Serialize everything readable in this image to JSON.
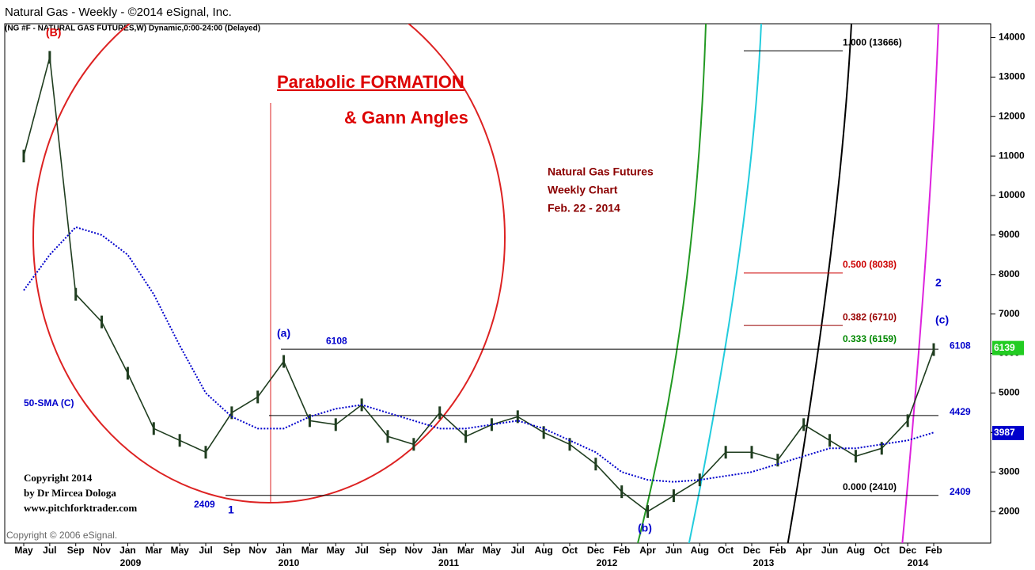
{
  "chart_data": {
    "type": "line",
    "title": "Natural Gas - Weekly - ©2014 eSignal, Inc.",
    "subtitle": "(NG #F - NATURAL GAS FUTURES,W) Dynamic,0:00-24:00 (Delayed)",
    "categories": [
      "May",
      "Jul",
      "Sep",
      "Nov",
      "Jan",
      "Mar",
      "May",
      "Jul",
      "Sep",
      "Nov",
      "Jan",
      "Mar",
      "May",
      "Jul",
      "Sep",
      "Nov",
      "Jan",
      "Mar",
      "May",
      "Jul",
      "Aug",
      "Oct",
      "Dec",
      "Feb",
      "Apr",
      "Jun",
      "Aug",
      "Oct",
      "Dec",
      "Feb",
      "Apr",
      "Jun",
      "Aug",
      "Oct",
      "Dec",
      "Feb"
    ],
    "years": [
      "2009",
      "2010",
      "2011",
      "2012",
      "2013",
      "2014"
    ],
    "series": [
      {
        "color": "#1f3d1f",
        "values": [
          11000,
          13500,
          7500,
          6800,
          5500,
          4100,
          3800,
          3500,
          4500,
          4900,
          5800,
          4300,
          4200,
          4700,
          3900,
          3700,
          4500,
          3900,
          4200,
          4400,
          4000,
          3700,
          3200,
          2500,
          2000,
          2400,
          2800,
          3500,
          3500,
          3300,
          4200,
          3800,
          3400,
          3600,
          4300,
          6100
        ]
      },
      {
        "name": "50-SMA (C)",
        "color": "#0000cc",
        "values": [
          7600,
          8500,
          9200,
          9000,
          8500,
          7500,
          6200,
          5000,
          4400,
          4100,
          4100,
          4400,
          4600,
          4700,
          4500,
          4300,
          4100,
          4100,
          4200,
          4300,
          4100,
          3800,
          3500,
          3000,
          2800,
          2750,
          2800,
          2900,
          3000,
          3200,
          3400,
          3600,
          3600,
          3700,
          3800,
          4000
        ]
      }
    ],
    "ylim": [
      1200,
      14350
    ],
    "yticks": [
      2000,
      3000,
      4000,
      5000,
      6000,
      7000,
      8000,
      9000,
      10000,
      11000,
      12000,
      13000,
      14000
    ],
    "levels": [
      6108,
      4429,
      2409
    ],
    "fib_levels": [
      {
        "value": 13666,
        "label": "1.000 (13666)",
        "color": "#000000"
      },
      {
        "value": 8038,
        "label": "0.500 (8038)",
        "color": "#cc0000"
      },
      {
        "value": 6710,
        "label": "0.382 (6710)",
        "color": "#990000"
      },
      {
        "value": 6159,
        "label": "0.333 (6159)",
        "color": "#008800"
      },
      {
        "value": 2410,
        "label": "0.000 (2410)",
        "color": "#000000"
      }
    ],
    "price_tags": [
      {
        "value": 6139,
        "color": "#22cc22"
      },
      {
        "value": 3987,
        "color": "#0000cc"
      }
    ],
    "annotations": [
      {
        "text": "Parabolic FORMATION",
        "color": "#dd0000"
      },
      {
        "text": "& Gann Angles",
        "color": "#dd0000"
      },
      {
        "text": "Natural Gas Futures",
        "color": "#8b0000"
      },
      {
        "text": "Weekly Chart",
        "color": "#8b0000"
      },
      {
        "text": "Feb. 22 - 2014",
        "color": "#8b0000"
      },
      {
        "text": "(a)",
        "color": "#0000cc"
      },
      {
        "text": "(b)",
        "color": "#0000cc"
      },
      {
        "text": "(c)",
        "color": "#0000cc"
      },
      {
        "text": "(B)",
        "color": "#dd0000"
      },
      {
        "text": "1",
        "color": "#0000cc"
      },
      {
        "text": "2",
        "color": "#0000cc"
      },
      {
        "text": "Copyright 2014",
        "color": "#000000"
      },
      {
        "text": "by Dr Mircea Dologa",
        "color": "#000000"
      },
      {
        "text": "www.pitchforktrader.com",
        "color": "#000000"
      },
      {
        "text": "Copyright © 2006 eSignal.",
        "color": "#666666"
      }
    ]
  }
}
